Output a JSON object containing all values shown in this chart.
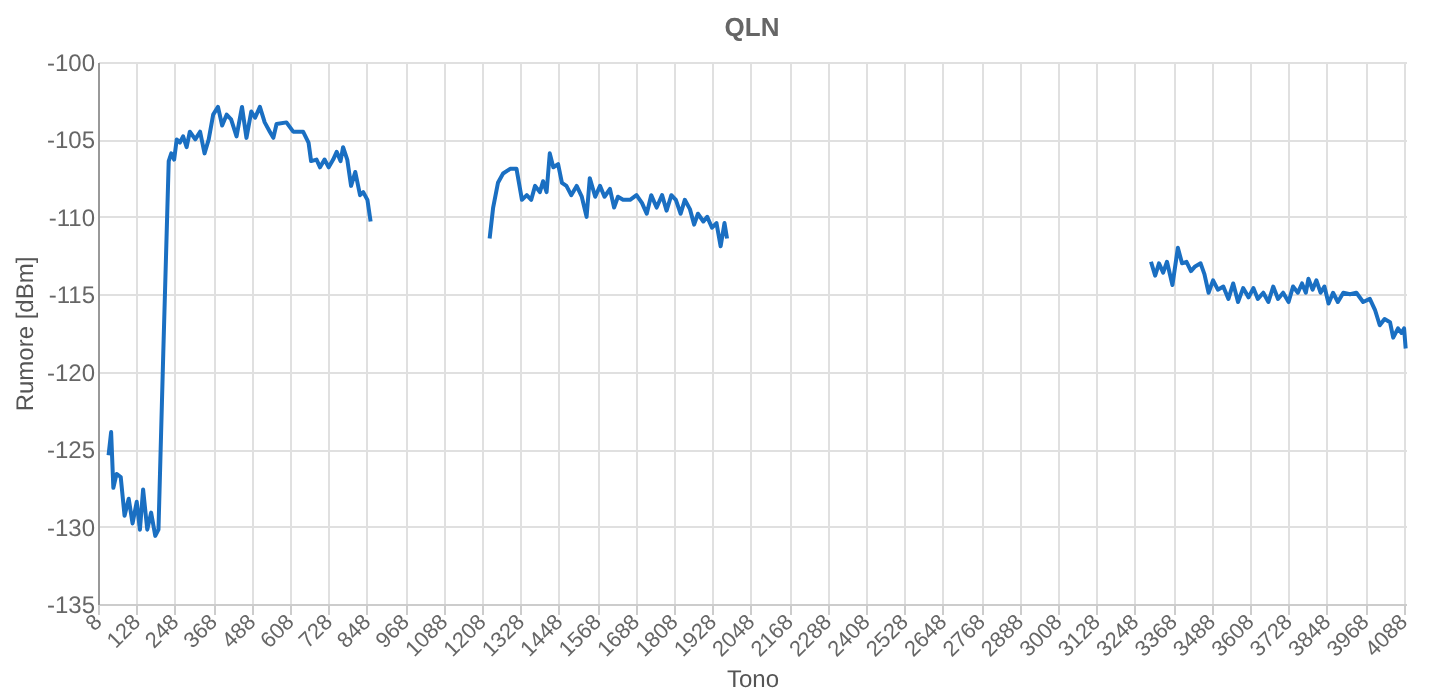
{
  "chart_data": {
    "type": "line",
    "title": "QLN",
    "xlabel": "Tono",
    "ylabel": "Rumore [dBm]",
    "xlim": [
      8,
      4096
    ],
    "ylim": [
      -135,
      -100
    ],
    "xticks": [
      8,
      128,
      248,
      368,
      488,
      608,
      728,
      848,
      968,
      1088,
      1208,
      1328,
      1448,
      1568,
      1688,
      1808,
      1928,
      2048,
      2168,
      2288,
      2408,
      2528,
      2648,
      2768,
      2888,
      3008,
      3128,
      3248,
      3368,
      3488,
      3608,
      3728,
      3848,
      3968,
      4088
    ],
    "yticks": [
      -135,
      -130,
      -125,
      -120,
      -115,
      -110,
      -105,
      -100
    ],
    "grid": true,
    "marker": "none",
    "line_style": "solid",
    "series": [
      {
        "color": "#1a6fc2",
        "x": [
          41,
          49,
          56,
          66,
          79,
          91,
          104,
          116,
          129,
          139,
          149,
          162,
          174,
          187,
          197,
          212,
          229,
          237,
          246,
          254,
          264,
          274,
          285,
          295,
          312,
          327,
          341,
          354,
          368,
          383,
          396,
          410,
          424,
          441,
          458,
          472,
          487,
          499,
          514,
          529,
          545,
          556,
          566,
          597,
          618,
          649,
          666,
          674,
          691,
          702,
          716,
          729,
          743,
          754,
          766,
          774,
          787,
          799,
          812,
          827,
          837,
          850,
          860,
          1000,
          1232,
          1243,
          1258,
          1274,
          1296,
          1316,
          1333,
          1348,
          1362,
          1374,
          1389,
          1399,
          1410,
          1420,
          1431,
          1446,
          1458,
          1472,
          1487,
          1504,
          1520,
          1535,
          1545,
          1562,
          1577,
          1591,
          1608,
          1621,
          1633,
          1649,
          1671,
          1691,
          1708,
          1723,
          1737,
          1754,
          1771,
          1785,
          1800,
          1814,
          1829,
          1842,
          1858,
          1871,
          1883,
          1900,
          1912,
          1927,
          1941,
          1954,
          1966,
          1974,
          2500,
          3299,
          3312,
          3324,
          3337,
          3349,
          3366,
          3383,
          3396,
          3410,
          3424,
          3437,
          3454,
          3466,
          3479,
          3493,
          3508,
          3525,
          3541,
          3556,
          3571,
          3587,
          3604,
          3619,
          3633,
          3650,
          3666,
          3681,
          3696,
          3712,
          3729,
          3743,
          3758,
          3771,
          3783,
          3791,
          3804,
          3816,
          3829,
          3841,
          3854,
          3868,
          3883,
          3900,
          3921,
          3941,
          3962,
          3983,
          3999,
          4014,
          4029,
          4046,
          4056,
          4071,
          4082,
          4090,
          4095
        ],
        "values": [
          -125.4,
          -123.9,
          -127.5,
          -126.6,
          -126.8,
          -129.3,
          -128.2,
          -129.8,
          -128.4,
          -130.2,
          -127.6,
          -130.2,
          -129.1,
          -130.6,
          -130.2,
          -118.8,
          -106.4,
          -105.9,
          -106.3,
          -105,
          -105.2,
          -104.8,
          -105.5,
          -104.5,
          -105,
          -104.5,
          -105.9,
          -105,
          -103.4,
          -102.9,
          -104.1,
          -103.4,
          -103.7,
          -104.8,
          -102.9,
          -104.9,
          -103.2,
          -103.6,
          -102.9,
          -103.9,
          -104.5,
          -104.9,
          -104,
          -103.9,
          -104.5,
          -104.5,
          -105.2,
          -106.4,
          -106.3,
          -106.8,
          -106.3,
          -106.8,
          -106.3,
          -105.8,
          -106.4,
          -105.5,
          -106.3,
          -108,
          -107.1,
          -108.6,
          -108.4,
          -108.9,
          -110.3,
          null,
          -111.4,
          -109.4,
          -107.8,
          -107.2,
          -106.9,
          -106.9,
          -108.9,
          -108.6,
          -108.9,
          -108,
          -108.4,
          -107.7,
          -108.4,
          -105.9,
          -106.8,
          -106.6,
          -107.8,
          -108,
          -108.6,
          -108,
          -108.7,
          -110,
          -107.5,
          -108.7,
          -108,
          -108.7,
          -108.2,
          -109.4,
          -108.7,
          -108.9,
          -108.9,
          -108.6,
          -109.1,
          -109.8,
          -108.6,
          -109.4,
          -108.6,
          -109.6,
          -108.6,
          -108.9,
          -109.8,
          -108.9,
          -109.5,
          -110.5,
          -109.8,
          -110.3,
          -110,
          -110.7,
          -110.4,
          -111.9,
          -110.4,
          -111.4,
          null,
          -112.9,
          -113.8,
          -113,
          -113.6,
          -112.9,
          -114.4,
          -112,
          -113,
          -112.9,
          -113.5,
          -113.2,
          -113,
          -113.7,
          -114.9,
          -114.1,
          -114.7,
          -114.5,
          -115.3,
          -114.3,
          -115.5,
          -114.6,
          -115.2,
          -114.6,
          -115.3,
          -114.9,
          -115.5,
          -114.5,
          -115.3,
          -114.9,
          -115.5,
          -114.5,
          -114.9,
          -114.3,
          -114.9,
          -114,
          -114.7,
          -114.1,
          -114.9,
          -114.5,
          -115.6,
          -114.9,
          -115.5,
          -114.9,
          -115,
          -114.9,
          -115.5,
          -115.3,
          -116,
          -117,
          -116.6,
          -116.8,
          -117.8,
          -117.2,
          -117.5,
          -117.2,
          -118.5
        ]
      }
    ]
  }
}
